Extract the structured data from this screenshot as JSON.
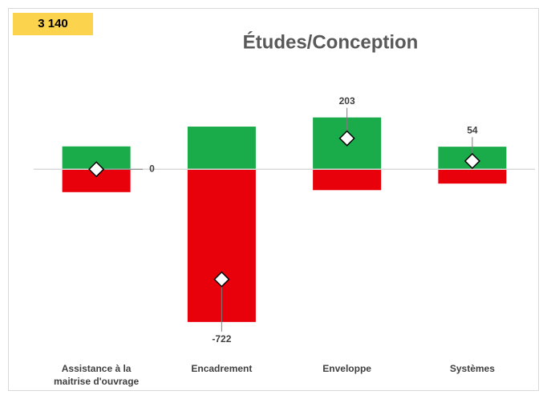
{
  "chart_data": {
    "type": "bar",
    "badge": "3 140",
    "title": "Études/Conception",
    "categories": [
      "Assistance à la maitrise d'ouvrage",
      "Encadrement",
      "Enveloppe",
      "Systèmes"
    ],
    "series": [
      {
        "color": "#1aab4b",
        "values": [
          150,
          280,
          340,
          148
        ]
      },
      {
        "color": "#e8000b",
        "values": [
          -150,
          -1002,
          -137,
          -94
        ]
      }
    ],
    "markers": {
      "color": "#ffffff",
      "values": [
        0,
        -722,
        203,
        54
      ]
    },
    "ylim": [
      -1150,
      585
    ],
    "stacked": true
  }
}
